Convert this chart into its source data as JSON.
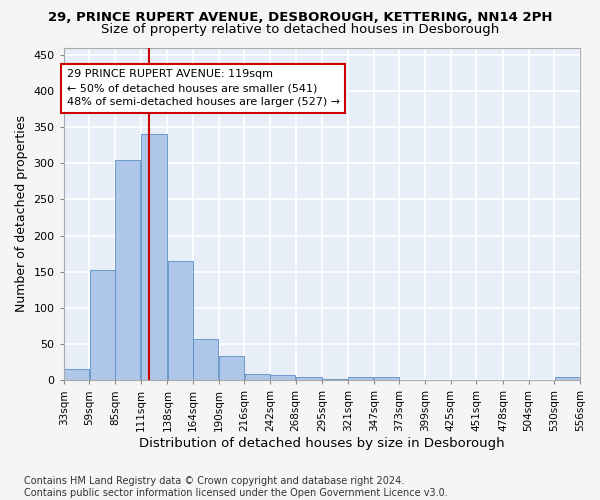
{
  "title1": "29, PRINCE RUPERT AVENUE, DESBOROUGH, KETTERING, NN14 2PH",
  "title2": "Size of property relative to detached houses in Desborough",
  "xlabel": "Distribution of detached houses by size in Desborough",
  "ylabel": "Number of detached properties",
  "footnote": "Contains HM Land Registry data © Crown copyright and database right 2024.\nContains public sector information licensed under the Open Government Licence v3.0.",
  "bar_left_edges": [
    33,
    59,
    85,
    111,
    138,
    164,
    190,
    216,
    242,
    268,
    295,
    321,
    347,
    373,
    399,
    425,
    451,
    478,
    504,
    530
  ],
  "bar_widths": [
    26,
    26,
    26,
    27,
    26,
    26,
    26,
    26,
    26,
    27,
    26,
    26,
    26,
    26,
    26,
    26,
    27,
    26,
    26,
    26
  ],
  "bar_heights": [
    15,
    153,
    305,
    340,
    165,
    57,
    33,
    9,
    7,
    5,
    2,
    4,
    5,
    1,
    1,
    0,
    0,
    0,
    0,
    4
  ],
  "tick_labels": [
    "33sqm",
    "59sqm",
    "85sqm",
    "111sqm",
    "138sqm",
    "164sqm",
    "190sqm",
    "216sqm",
    "242sqm",
    "268sqm",
    "295sqm",
    "321sqm",
    "347sqm",
    "373sqm",
    "399sqm",
    "425sqm",
    "451sqm",
    "478sqm",
    "504sqm",
    "530sqm",
    "556sqm"
  ],
  "bar_color": "#aec6e8",
  "bar_edge_color": "#5a8fc4",
  "vline_x": 119,
  "vline_color": "#cc0000",
  "annotation_text": "29 PRINCE RUPERT AVENUE: 119sqm\n← 50% of detached houses are smaller (541)\n48% of semi-detached houses are larger (527) →",
  "annotation_box_color": "#ffffff",
  "annotation_box_edge": "#cc0000",
  "ylim": [
    0,
    460
  ],
  "xlim": [
    33,
    556
  ],
  "yticks": [
    0,
    50,
    100,
    150,
    200,
    250,
    300,
    350,
    400,
    450
  ],
  "bg_color": "#e8eef8",
  "fig_bg_color": "#f5f5f5",
  "grid_color": "#ffffff",
  "title1_fontsize": 9.5,
  "title2_fontsize": 9.5,
  "axis_label_fontsize": 9,
  "tick_fontsize": 7.5,
  "annotation_fontsize": 8,
  "footnote_fontsize": 7
}
